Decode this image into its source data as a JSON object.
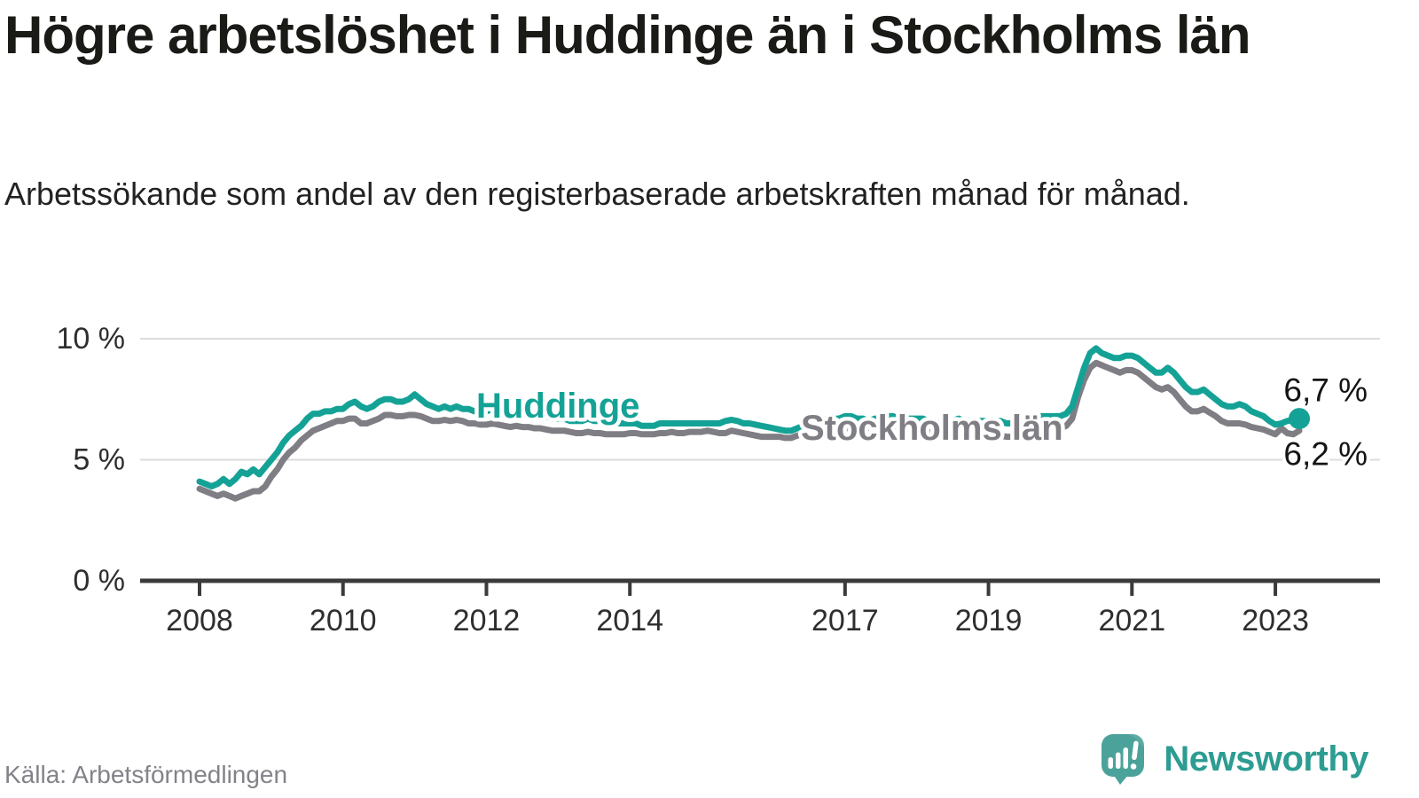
{
  "footer": {
    "brand": "Newsworthy",
    "logo_icon": "speech-bubble-bar-chart-icon"
  },
  "chart_data": {
    "type": "line",
    "title": "Högre arbetslöshet i Huddinge än i Stockholms län",
    "subtitle": "Arbetssökande som andel av den registerbaserade arbetskraften månad för månad.",
    "source": "Källa: Arbetsförmedlingen",
    "unit": "percent",
    "x_start": "2008-01",
    "x_end": "2023-05",
    "grid": "horizontal",
    "legend": "inline-labels",
    "style": {
      "grid_color": "#dcdcdc",
      "axis_color": "#3b3b3b",
      "text_color": "#2e2e2e",
      "background": "#ffffff"
    },
    "x_axis": {
      "ticks": [
        {
          "year": 2008,
          "label": "2008"
        },
        {
          "year": 2010,
          "label": "2010"
        },
        {
          "year": 2012,
          "label": "2012"
        },
        {
          "year": 2014,
          "label": "2014"
        },
        {
          "year": 2017,
          "label": "2017"
        },
        {
          "year": 2019,
          "label": "2019"
        },
        {
          "year": 2021,
          "label": "2021"
        },
        {
          "year": 2023,
          "label": "2023"
        }
      ]
    },
    "y_axis": {
      "range": [
        0,
        11.5
      ],
      "ticks": [
        {
          "value": 0,
          "label": "0 %"
        },
        {
          "value": 5,
          "label": "5 %"
        },
        {
          "value": 10,
          "label": "10 %"
        }
      ]
    },
    "series": [
      {
        "name": "Huddinge",
        "color": "#15a296",
        "end_label": "6,7 %",
        "end_dot": true,
        "values": [
          4.1,
          4.0,
          3.9,
          4.0,
          4.2,
          4.0,
          4.2,
          4.5,
          4.4,
          4.6,
          4.4,
          4.7,
          5.0,
          5.3,
          5.7,
          6.0,
          6.2,
          6.4,
          6.7,
          6.9,
          6.9,
          7.0,
          7.0,
          7.1,
          7.1,
          7.3,
          7.4,
          7.2,
          7.1,
          7.2,
          7.4,
          7.5,
          7.5,
          7.4,
          7.4,
          7.5,
          7.7,
          7.5,
          7.3,
          7.2,
          7.1,
          7.2,
          7.1,
          7.2,
          7.1,
          7.1,
          7.0,
          7.0,
          7.0,
          7.1,
          7.0,
          6.9,
          6.9,
          7.0,
          6.9,
          6.9,
          6.8,
          6.8,
          6.8,
          6.7,
          6.7,
          6.7,
          6.6,
          6.6,
          6.6,
          6.7,
          6.6,
          6.6,
          6.5,
          6.5,
          6.5,
          6.5,
          6.5,
          6.5,
          6.4,
          6.4,
          6.4,
          6.5,
          6.5,
          6.5,
          6.5,
          6.5,
          6.5,
          6.5,
          6.5,
          6.5,
          6.5,
          6.5,
          6.6,
          6.65,
          6.6,
          6.5,
          6.5,
          6.45,
          6.4,
          6.35,
          6.3,
          6.25,
          6.2,
          6.2,
          6.3,
          6.4,
          6.5,
          6.6,
          6.65,
          6.7,
          6.7,
          6.7,
          6.8,
          6.8,
          6.7,
          6.7,
          6.6,
          6.7,
          6.7,
          6.8,
          6.8,
          6.7,
          6.7,
          6.7,
          6.7,
          6.7,
          6.6,
          6.6,
          6.5,
          6.6,
          6.6,
          6.7,
          6.6,
          6.6,
          6.6,
          6.6,
          6.6,
          6.6,
          6.6,
          6.5,
          6.5,
          6.6,
          6.7,
          6.8,
          6.8,
          6.8,
          6.8,
          6.8,
          6.8,
          6.9,
          7.2,
          8.0,
          8.8,
          9.4,
          9.6,
          9.4,
          9.3,
          9.2,
          9.2,
          9.3,
          9.3,
          9.2,
          9.0,
          8.8,
          8.6,
          8.6,
          8.8,
          8.6,
          8.3,
          8.0,
          7.8,
          7.8,
          7.9,
          7.7,
          7.5,
          7.3,
          7.2,
          7.2,
          7.3,
          7.2,
          7.0,
          6.9,
          6.8,
          6.6,
          6.45,
          6.5,
          6.6,
          6.65,
          6.7
        ]
      },
      {
        "name": "Stockholms län",
        "color": "#7e7e84",
        "end_label": "6,2 %",
        "end_dot": false,
        "values": [
          3.8,
          3.7,
          3.6,
          3.5,
          3.6,
          3.5,
          3.4,
          3.5,
          3.6,
          3.7,
          3.7,
          3.9,
          4.3,
          4.6,
          5.0,
          5.3,
          5.5,
          5.8,
          6.0,
          6.2,
          6.3,
          6.4,
          6.5,
          6.6,
          6.6,
          6.7,
          6.7,
          6.5,
          6.5,
          6.6,
          6.7,
          6.85,
          6.85,
          6.8,
          6.8,
          6.85,
          6.85,
          6.8,
          6.7,
          6.6,
          6.6,
          6.65,
          6.6,
          6.65,
          6.6,
          6.5,
          6.5,
          6.45,
          6.45,
          6.5,
          6.45,
          6.4,
          6.35,
          6.4,
          6.35,
          6.35,
          6.3,
          6.3,
          6.25,
          6.2,
          6.2,
          6.2,
          6.15,
          6.1,
          6.1,
          6.15,
          6.1,
          6.1,
          6.05,
          6.05,
          6.05,
          6.05,
          6.1,
          6.1,
          6.05,
          6.05,
          6.05,
          6.1,
          6.1,
          6.15,
          6.1,
          6.1,
          6.15,
          6.15,
          6.15,
          6.2,
          6.15,
          6.1,
          6.1,
          6.2,
          6.15,
          6.1,
          6.05,
          6.0,
          5.95,
          5.95,
          5.95,
          5.95,
          5.9,
          5.9,
          6.0,
          6.05,
          6.1,
          6.2,
          6.2,
          6.25,
          6.25,
          6.25,
          6.3,
          6.3,
          6.25,
          6.2,
          6.15,
          6.2,
          6.2,
          6.3,
          6.3,
          6.25,
          6.2,
          6.2,
          6.2,
          6.2,
          6.15,
          6.1,
          6.05,
          6.1,
          6.1,
          6.15,
          6.1,
          6.05,
          6.0,
          6.0,
          6.0,
          6.0,
          6.0,
          5.95,
          5.95,
          6.0,
          6.1,
          6.2,
          6.2,
          6.25,
          6.3,
          6.3,
          6.3,
          6.4,
          6.7,
          7.6,
          8.3,
          8.8,
          9.0,
          8.9,
          8.8,
          8.7,
          8.6,
          8.7,
          8.7,
          8.6,
          8.4,
          8.2,
          8.0,
          7.9,
          8.0,
          7.8,
          7.5,
          7.2,
          7.0,
          7.0,
          7.1,
          6.95,
          6.8,
          6.6,
          6.5,
          6.5,
          6.5,
          6.45,
          6.35,
          6.3,
          6.25,
          6.15,
          6.05,
          6.3,
          6.1,
          6.05,
          6.2
        ]
      }
    ]
  }
}
